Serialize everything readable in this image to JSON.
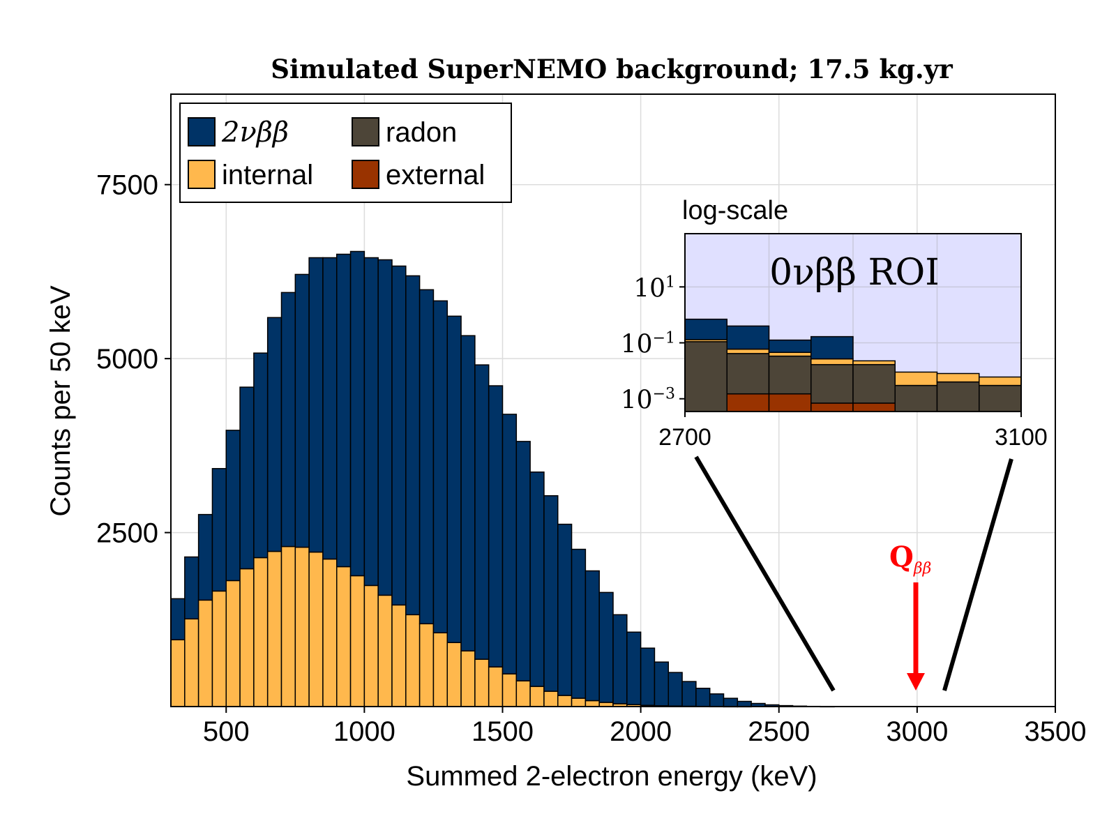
{
  "chart_data": [
    {
      "type": "bar",
      "stacked": true,
      "title": "Simulated SuperNEMO background; 17.5 kg.yr",
      "xlabel": "Summed 2-electron energy (keV)",
      "ylabel": "Counts per 50 keV",
      "xlim": [
        300,
        3500
      ],
      "ylim": [
        0,
        8800
      ],
      "xticks": [
        500,
        1000,
        1500,
        2000,
        2500,
        3000,
        3500
      ],
      "xtick_labels": [
        "500",
        "1000",
        "1500",
        "2000",
        "2500",
        "3000",
        "3500"
      ],
      "yticks": [
        2500,
        5000,
        7500
      ],
      "ytick_labels": [
        "2500",
        "5000",
        "7500"
      ],
      "grid": true,
      "legend_position": "top-left",
      "bin_width": 50,
      "x_bin_starts": [
        300,
        350,
        400,
        450,
        500,
        550,
        600,
        650,
        700,
        750,
        800,
        850,
        900,
        950,
        1000,
        1050,
        1100,
        1150,
        1200,
        1250,
        1300,
        1350,
        1400,
        1450,
        1500,
        1550,
        1600,
        1650,
        1700,
        1750,
        1800,
        1850,
        1900,
        1950,
        2000,
        2050,
        2100,
        2150,
        2200,
        2250,
        2300,
        2350,
        2400,
        2450,
        2500,
        2550,
        2600,
        2650
      ],
      "series": [
        {
          "name": "internal",
          "color": "#FFB84D",
          "values": [
            960,
            1260,
            1530,
            1660,
            1810,
            1980,
            2140,
            2230,
            2300,
            2290,
            2220,
            2120,
            2010,
            1880,
            1740,
            1600,
            1460,
            1320,
            1190,
            1060,
            920,
            800,
            680,
            570,
            470,
            370,
            290,
            220,
            160,
            120,
            85,
            60,
            40,
            28,
            18,
            12,
            8,
            5,
            3,
            2,
            1,
            1,
            0,
            0,
            0,
            0,
            0,
            0
          ]
        },
        {
          "name": "2νββ",
          "color": "#003366",
          "values": [
            590,
            890,
            1230,
            1760,
            2160,
            2610,
            2940,
            3360,
            3650,
            3920,
            4230,
            4330,
            4490,
            4660,
            4710,
            4820,
            4870,
            4870,
            4800,
            4770,
            4690,
            4530,
            4230,
            4040,
            3730,
            3440,
            3080,
            2810,
            2460,
            2140,
            1865,
            1580,
            1280,
            1042,
            822,
            628,
            482,
            355,
            260,
            180,
            118,
            74,
            45,
            25,
            14,
            7,
            3,
            1
          ]
        }
      ]
    },
    {
      "type": "bar",
      "stacked": true,
      "title": "log-scale",
      "annotation": "0νββ ROI",
      "yscale": "log",
      "xlim": [
        2700,
        3100
      ],
      "ylim": [
        0.00035,
        800
      ],
      "xtick_labels": [
        "2700",
        "3100"
      ],
      "ytick_labels": [
        "10^1",
        "10^-1",
        "10^-3"
      ],
      "yticks": [
        10,
        0.1,
        0.001
      ],
      "bin_width": 50,
      "x_bin_starts": [
        2700,
        2750,
        2800,
        2850,
        2900,
        2950,
        3000,
        3050
      ],
      "series": [
        {
          "name": "external",
          "color": "#993300",
          "values": [
            0,
            0.0015,
            0.0015,
            0.0007,
            0.0007,
            0,
            0,
            0
          ]
        },
        {
          "name": "radon",
          "color": "#4D4538",
          "values": [
            0.11,
            0.04,
            0.032,
            0.016,
            0.016,
            0.003,
            0.004,
            0.003
          ]
        },
        {
          "name": "internal",
          "color": "#FFB84D",
          "values": [
            0.02,
            0.018,
            0.012,
            0.01,
            0.006,
            0.006,
            0.004,
            0.003
          ]
        },
        {
          "name": "2νββ",
          "color": "#003366",
          "values": [
            0.57,
            0.34,
            0.08,
            0.14,
            0,
            0,
            0,
            0
          ]
        }
      ]
    }
  ],
  "legend": [
    {
      "label": "2νββ",
      "color": "#003366",
      "math": true
    },
    {
      "label": "radon",
      "color": "#4D4538",
      "math": false
    },
    {
      "label": "internal",
      "color": "#FFB84D",
      "math": false
    },
    {
      "label": "external",
      "color": "#993300",
      "math": false
    }
  ],
  "annotations": {
    "q_label_main": "Q",
    "q_label_sub": "ββ",
    "q_value": 3000,
    "q_color": "#FF0000",
    "roi_box_color": "#E0E0FF"
  }
}
